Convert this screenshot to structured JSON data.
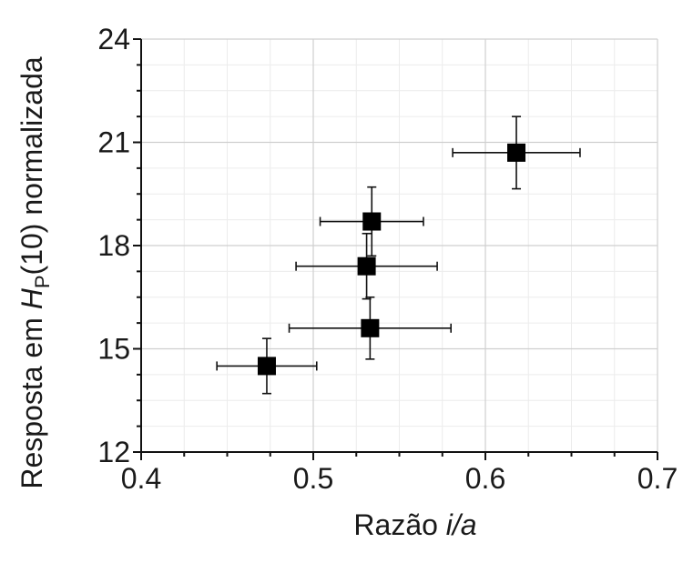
{
  "chart_data": {
    "type": "scatter",
    "title": "",
    "xlabel": {
      "prefix": "Razão ",
      "italic": "i/a"
    },
    "ylabel": {
      "prefix": "Resposta em ",
      "italic": "H",
      "subscript": "P",
      "suffix": "(10) normalizada"
    },
    "xlim": [
      0.4,
      0.7
    ],
    "ylim": [
      12,
      24
    ],
    "x_ticks": [
      0.4,
      0.5,
      0.6,
      0.7
    ],
    "x_tick_labels": [
      "0.4",
      "0.5",
      "0.6",
      "0.7"
    ],
    "y_ticks": [
      12,
      15,
      18,
      21,
      24
    ],
    "y_tick_labels": [
      "12",
      "15",
      "18",
      "21",
      "24"
    ],
    "grid": true,
    "points": [
      {
        "x": 0.473,
        "y": 14.5,
        "x_err": 0.029,
        "y_err": 0.8
      },
      {
        "x": 0.533,
        "y": 15.6,
        "x_err": 0.047,
        "y_err": 0.9
      },
      {
        "x": 0.531,
        "y": 17.4,
        "x_err": 0.041,
        "y_err": 0.95
      },
      {
        "x": 0.534,
        "y": 18.7,
        "x_err": 0.03,
        "y_err": 1.0
      },
      {
        "x": 0.618,
        "y": 20.7,
        "x_err": 0.037,
        "y_err": 1.05
      }
    ],
    "marker": "square",
    "marker_color": "#000000"
  }
}
